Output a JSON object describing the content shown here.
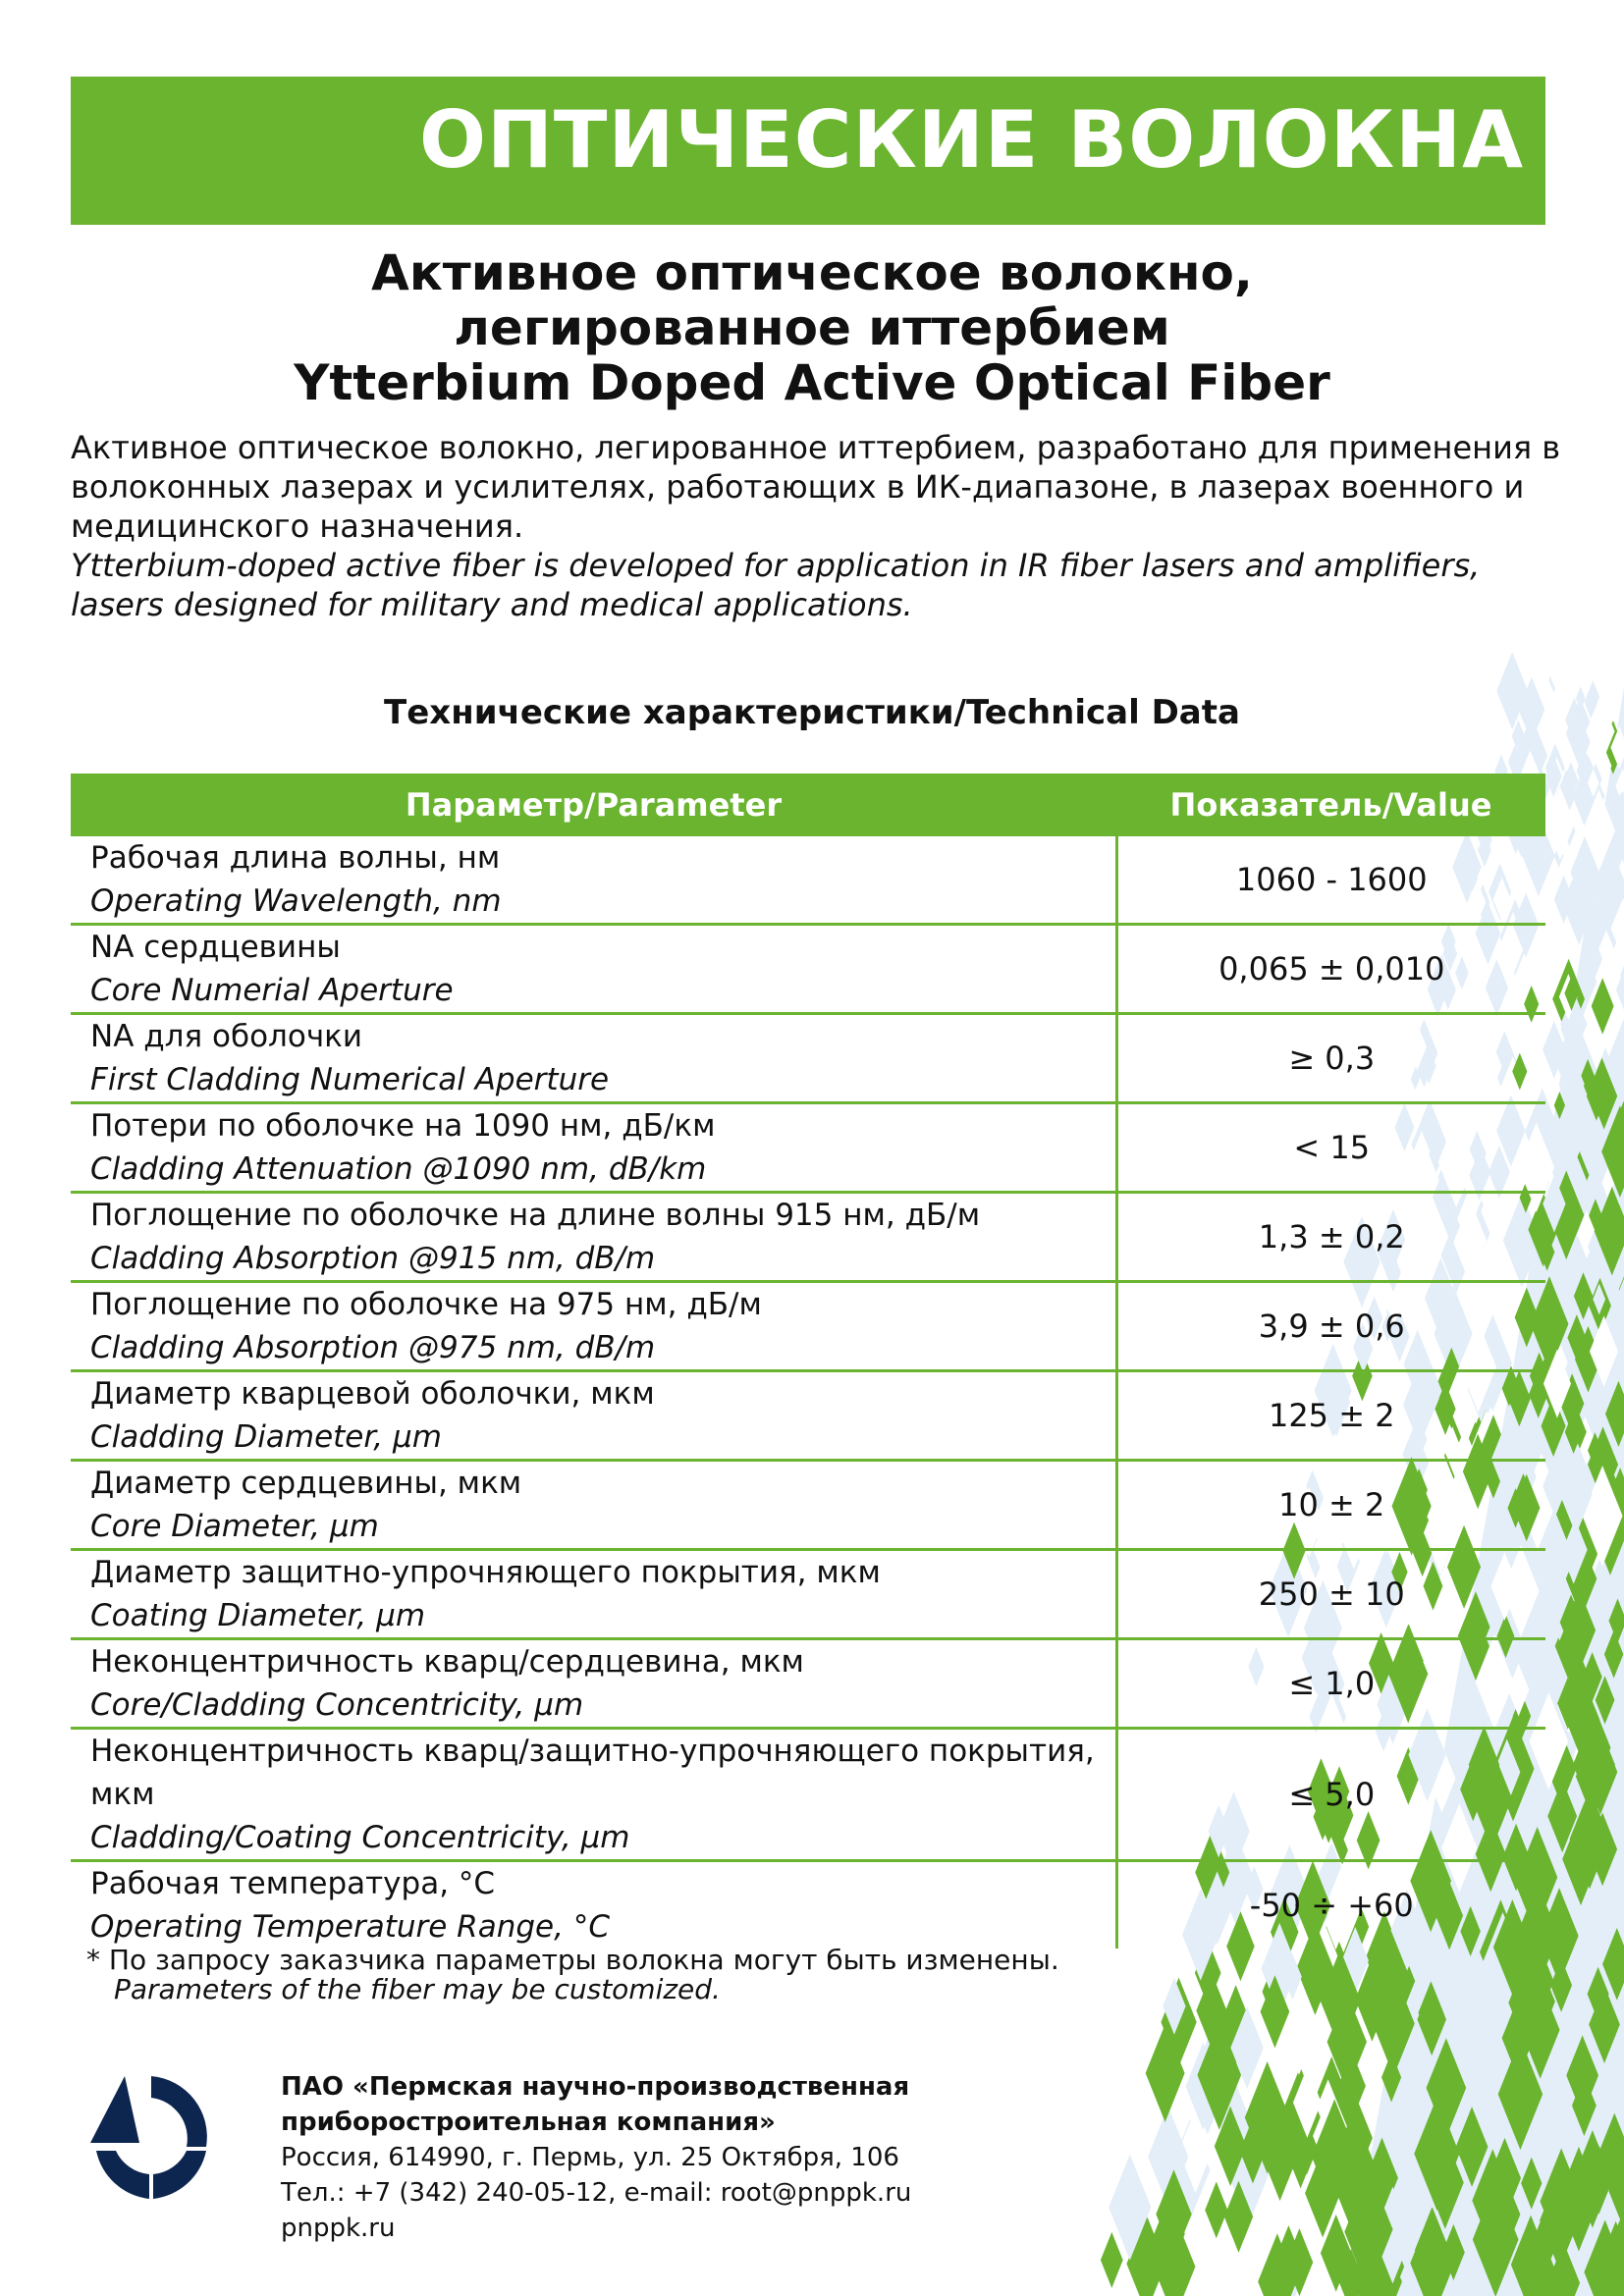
{
  "banner": {
    "title": "ОПТИЧЕСКИЕ ВОЛОКНА"
  },
  "product": {
    "title_ru_1": "Активное оптическое волокно,",
    "title_ru_2": "легированное иттербием",
    "title_en": "Ytterbium Doped Active Optical Fiber"
  },
  "intro": {
    "ru": "Активное оптическое волокно, легированное иттербием, разработано для применения в волоконных лазерах и усилителях, работающих в ИК-диапазоне, в лазерах военного и медицинского назначения.",
    "en": "Ytterbium-doped active fiber is developed for application in IR fiber lasers and amplifiers, lasers designed for military and medical applications."
  },
  "section_title": "Технические характеристики/Technical Data",
  "table": {
    "headers": {
      "parameter": "Параметр/Parameter",
      "value": "Показатель/Value"
    },
    "rows": [
      {
        "ru": "Рабочая длина волны, нм",
        "en": "Operating Wavelength, nm",
        "value": "1060 - 1600"
      },
      {
        "ru": "NA сердцевины",
        "en": "Core Numerial Aperture",
        "value": "0,065 ± 0,010"
      },
      {
        "ru": "NA для оболочки",
        "en": "First Cladding Numerical Aperture",
        "value": "≥ 0,3"
      },
      {
        "ru": "Потери по оболочке на 1090 нм, дБ/км",
        "en": "Cladding Attenuation @1090 nm, dB/km",
        "value": "< 15"
      },
      {
        "ru": "Поглощение по оболочке на длине волны 915 нм, дБ/м",
        "en": "Cladding Absorption @915 nm, dB/m",
        "value": "1,3 ± 0,2"
      },
      {
        "ru": "Поглощение по оболочке на 975 нм, дБ/м",
        "en": "Cladding Absorption @975 nm, dB/m",
        "value": "3,9 ± 0,6"
      },
      {
        "ru": "Диаметр кварцевой оболочки, мкм",
        "en": "Cladding Diameter, µm",
        "value": "125 ± 2"
      },
      {
        "ru": "Диаметр сердцевины, мкм",
        "en": "Core Diameter,  µm",
        "value": "10 ± 2"
      },
      {
        "ru": "Диаметр защитно-упрочняющего покрытия, мкм",
        "en": "Coating Diameter, µm",
        "value": "250 ± 10"
      },
      {
        "ru": "Неконцентричность кварц/сердцевина, мкм",
        "en": "Core/Cladding Concentricity, µm",
        "value": "≤ 1,0"
      },
      {
        "ru": "Неконцентричность кварц/защитно-упрочняющего покрытия, мкм",
        "en": "Cladding/Coating Concentricity, µm",
        "value": "≤ 5,0"
      },
      {
        "ru": "Рабочая температура, °C",
        "en": "Operating Temperature Range, °C",
        "value": "-50 ÷  +60"
      }
    ]
  },
  "footnote": {
    "ru": "* По запросу заказчика параметры волокна могут быть изменены.",
    "en": "Parameters of the fiber may be customized."
  },
  "company": {
    "name_1": "ПАО «Пермская научно-производственная",
    "name_2": "приборостроительная компания»",
    "address": "Россия, 614990, г. Пермь, ул. 25 Октября, 106",
    "contacts": "Тел.: +7 (342) 240-05-12, e-mail: root@pnppk.ru",
    "site": "pnppk.ru"
  },
  "colors": {
    "accent": "#6ab42f",
    "pattern_blue": "#e3eef8",
    "logo": "#0d2650"
  }
}
